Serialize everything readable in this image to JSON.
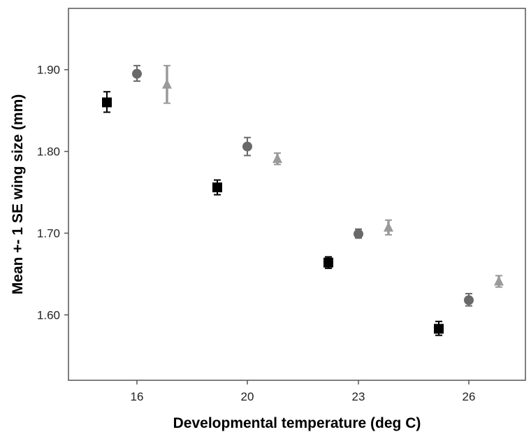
{
  "chart_data": {
    "type": "scatter",
    "title": "",
    "xlabel": "Developmental temperature (deg C)",
    "ylabel": "Mean +- 1 SE wing size (mm)",
    "ylim": [
      1.52,
      1.975
    ],
    "yticks": [
      "1.60",
      "1.70",
      "1.80",
      "1.90"
    ],
    "ytick_values": [
      1.6,
      1.7,
      1.8,
      1.9
    ],
    "xcategories": [
      "16",
      "20",
      "23",
      "26"
    ],
    "grid": false,
    "legend": "none",
    "series": [
      {
        "marker": "square",
        "color": "#000000",
        "points": [
          {
            "x": "16",
            "y": 1.86,
            "low": 1.848,
            "high": 1.873
          },
          {
            "x": "20",
            "y": 1.756,
            "low": 1.747,
            "high": 1.765
          },
          {
            "x": "23",
            "y": 1.664,
            "low": 1.657,
            "high": 1.671
          },
          {
            "x": "26",
            "y": 1.583,
            "low": 1.575,
            "high": 1.592
          }
        ]
      },
      {
        "marker": "circle",
        "color": "#696969",
        "points": [
          {
            "x": "16",
            "y": 1.895,
            "low": 1.886,
            "high": 1.905
          },
          {
            "x": "20",
            "y": 1.806,
            "low": 1.795,
            "high": 1.817
          },
          {
            "x": "23",
            "y": 1.699,
            "low": 1.694,
            "high": 1.705
          },
          {
            "x": "26",
            "y": 1.618,
            "low": 1.611,
            "high": 1.626
          }
        ]
      },
      {
        "marker": "triangle",
        "color": "#9a9a9a",
        "points": [
          {
            "x": "16",
            "y": 1.882,
            "low": 1.859,
            "high": 1.905
          },
          {
            "x": "20",
            "y": 1.791,
            "low": 1.784,
            "high": 1.798
          },
          {
            "x": "23",
            "y": 1.707,
            "low": 1.698,
            "high": 1.716
          },
          {
            "x": "26",
            "y": 1.641,
            "low": 1.634,
            "high": 1.648
          }
        ]
      }
    ]
  }
}
